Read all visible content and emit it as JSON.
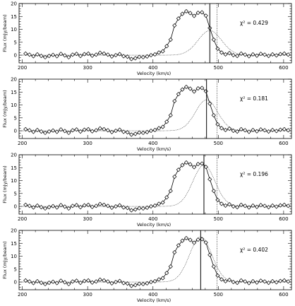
{
  "chart_data": [
    {
      "type": "line",
      "xlabel": "Velocity (km/s)",
      "ylabel": "Flux (mJy/beam)",
      "xlim": [
        195,
        612
      ],
      "ylim": [
        -3,
        20
      ],
      "xticks": [
        200,
        300,
        400,
        500,
        600
      ],
      "yticks": [
        0,
        5,
        10,
        15,
        20
      ],
      "annotation": "χ² = 0.429",
      "solid_line_x": 487,
      "dotted_line_x": 498,
      "model_peak": 9.5,
      "model_center": 487,
      "model_width": 18
    },
    {
      "type": "line",
      "xlabel": "Velocity (km/s)",
      "ylabel": "Flux (mJy/beam)",
      "xlim": [
        195,
        612
      ],
      "ylim": [
        -3,
        20
      ],
      "xticks": [
        200,
        300,
        400,
        500,
        600
      ],
      "yticks": [
        0,
        5,
        10,
        15,
        20
      ],
      "annotation": "χ² = 0.181",
      "solid_line_x": 482,
      "dotted_line_x": 498,
      "model_peak": 12,
      "model_center": 482,
      "model_width": 17
    },
    {
      "type": "line",
      "xlabel": "Velocity (km/s)",
      "ylabel": "Flux (mJy/beam)",
      "xlim": [
        195,
        612
      ],
      "ylim": [
        -3,
        20
      ],
      "xticks": [
        200,
        300,
        400,
        500,
        600
      ],
      "yticks": [
        0,
        5,
        10,
        15,
        20
      ],
      "annotation": "χ² = 0.196",
      "solid_line_x": 478,
      "dotted_line_x": 498,
      "model_peak": 16,
      "model_center": 478,
      "model_width": 17
    },
    {
      "type": "line",
      "xlabel": "Velocity (km/s)",
      "ylabel": "Flux (mJy/beam)",
      "xlim": [
        195,
        612
      ],
      "ylim": [
        -3,
        20
      ],
      "xticks": [
        200,
        300,
        400,
        500,
        600
      ],
      "yticks": [
        0,
        5,
        10,
        15,
        20
      ],
      "annotation": "χ² = 0.402",
      "solid_line_x": 473,
      "dotted_line_x": 498,
      "model_peak": 17.5,
      "model_center": 473,
      "model_width": 17
    }
  ],
  "observed": {
    "x": [
      205,
      211,
      217,
      223,
      229,
      235,
      241,
      247,
      253,
      259,
      265,
      271,
      277,
      283,
      289,
      295,
      301,
      307,
      313,
      319,
      325,
      331,
      337,
      343,
      349,
      355,
      361,
      367,
      373,
      379,
      385,
      391,
      397,
      403,
      409,
      415,
      421,
      427,
      433,
      439,
      445,
      451,
      457,
      463,
      469,
      475,
      481,
      487,
      493,
      499,
      505,
      511,
      517,
      523,
      529,
      535,
      541,
      547,
      553,
      559,
      565,
      571,
      577,
      583,
      589,
      595,
      601,
      607
    ],
    "y": [
      0.6,
      0.2,
      -0.4,
      0.3,
      -0.3,
      -0.8,
      -0.3,
      0.1,
      -0.4,
      0.5,
      -0.1,
      -0.8,
      0.2,
      0.5,
      -0.3,
      0.4,
      0.6,
      -0.2,
      0.2,
      0.9,
      0.6,
      0.2,
      -0.5,
      0.0,
      0.4,
      -0.4,
      -0.6,
      -1.5,
      -1.2,
      -0.7,
      -0.8,
      -0.5,
      0.0,
      0.3,
      1.0,
      1.5,
      3.5,
      6.0,
      11.5,
      14.2,
      16.0,
      17.0,
      16.3,
      15.2,
      16.4,
      16.6,
      15.3,
      10.5,
      6.0,
      2.5,
      1.0,
      0.3,
      0.8,
      0.0,
      -0.3,
      0.6,
      0.2,
      -0.4,
      0.3,
      -0.2,
      0.5,
      0.2,
      -0.3,
      0.3,
      -0.1,
      0.4,
      0.6,
      0.2
    ]
  }
}
